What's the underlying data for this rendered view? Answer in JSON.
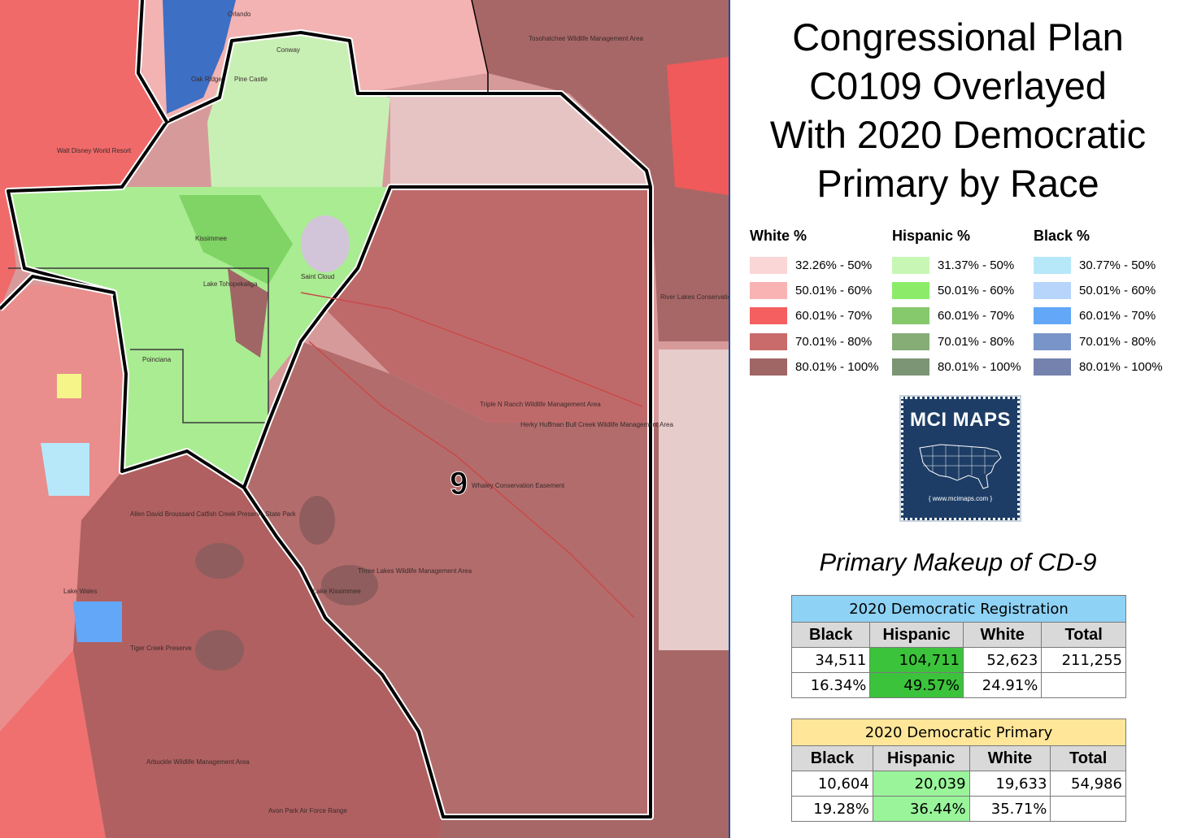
{
  "title": {
    "lines": [
      "Congressional Plan",
      "C0109 Overlayed",
      "With 2020 Democratic",
      "Primary by Race"
    ]
  },
  "legend": {
    "white": {
      "heading": "White %",
      "items": [
        {
          "label": "32.26% - 50%",
          "color": "#fbd6d6"
        },
        {
          "label": "50.01% - 60%",
          "color": "#f9b3b3"
        },
        {
          "label": "60.01% - 70%",
          "color": "#f55f5f"
        },
        {
          "label": "70.01% - 80%",
          "color": "#c96b6b"
        },
        {
          "label": "80.01% - 100%",
          "color": "#a06565"
        }
      ]
    },
    "hispanic": {
      "heading": "Hispanic %",
      "items": [
        {
          "label": "31.37% - 50%",
          "color": "#c8f7b5"
        },
        {
          "label": "50.01% - 60%",
          "color": "#8cec6a"
        },
        {
          "label": "60.01% - 70%",
          "color": "#86c86c"
        },
        {
          "label": "70.01% - 80%",
          "color": "#85ad75"
        },
        {
          "label": "80.01% - 100%",
          "color": "#7c9574"
        }
      ]
    },
    "black": {
      "heading": "Black %",
      "items": [
        {
          "label": "30.77% - 50%",
          "color": "#b7e8fa"
        },
        {
          "label": "50.01% - 60%",
          "color": "#b7d4fa"
        },
        {
          "label": "60.01% - 70%",
          "color": "#62a7f8"
        },
        {
          "label": "70.01% - 80%",
          "color": "#7894c9"
        },
        {
          "label": "80.01% - 100%",
          "color": "#7482ad"
        }
      ]
    }
  },
  "logo": {
    "text": "MCI MAPS",
    "url": "{ www.mcimaps.com }"
  },
  "subtitle": "Primary Makeup of CD-9",
  "registration": {
    "caption": "2020 Democratic Registration",
    "headers": [
      "Black",
      "Hispanic",
      "White",
      "Total"
    ],
    "counts": [
      "34,511",
      "104,711",
      "52,623",
      "211,255"
    ],
    "percents": [
      "16.34%",
      "49.57%",
      "24.91%",
      ""
    ]
  },
  "primary": {
    "caption": "2020 Democratic Primary",
    "headers": [
      "Black",
      "Hispanic",
      "White",
      "Total"
    ],
    "counts": [
      "10,604",
      "20,039",
      "19,633",
      "54,986"
    ],
    "percents": [
      "19.28%",
      "36.44%",
      "35.71%",
      ""
    ]
  },
  "map": {
    "district_label": "9",
    "place_labels": {
      "orlando": "Orlando",
      "conway": "Conway",
      "oak_ridge": "Oak Ridge",
      "pine_castle": "Pine Castle",
      "walt_disney": "Walt Disney World Resort",
      "kissimmee": "Kissimmee",
      "saint_cloud": "Saint Cloud",
      "lake_tohopekaliga": "Lake Tohopekaliga",
      "poinciana": "Poinciana",
      "three_lakes": "Three Lakes Wildlife Management Area",
      "lake_kissimmee": "Lake Kissimmee",
      "triple_n": "Triple N Ranch Wildlife Management Area",
      "herky_huffman": "Herky Huffman Bull Creek Wildlife Management Area",
      "whaley": "Whaley Conservation Easement",
      "lake_wales": "Lake Wales",
      "avon_park": "Avon Park Air Force Range",
      "river_lakes": "River Lakes Conservation Area",
      "tosohatchee": "Tosohatchee Wildlife Management Area",
      "allen_broussard": "Allen David Broussard Catfish Creek Preserve State Park",
      "arbuckle": "Arbuckle Wildlife Management Area",
      "tiger_creek": "Tiger Creek Preserve"
    }
  }
}
